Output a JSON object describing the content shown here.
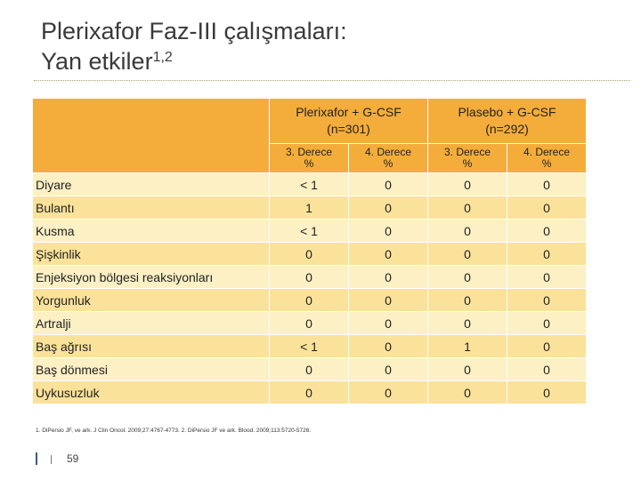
{
  "slide": {
    "title_line1": "Plerixafor Faz-III çalışmaları:",
    "title_line2": "Yan etkiler",
    "title_sup": "1,2",
    "groups": [
      {
        "line1": "Plerixafor + G-CSF",
        "line2": "(n=301)"
      },
      {
        "line1": "Plasebo + G-CSF",
        "line2": "(n=292)"
      }
    ],
    "subheaders": [
      {
        "label": "3. Derece",
        "unit": "%"
      },
      {
        "label": "4. Derece",
        "unit": "%"
      },
      {
        "label": "3. Derece",
        "unit": "%"
      },
      {
        "label": "4. Derece",
        "unit": "%"
      }
    ],
    "rows": [
      {
        "label": "Diyare",
        "values": [
          "< 1",
          "0",
          "0",
          "0"
        ]
      },
      {
        "label": "Bulantı",
        "values": [
          "1",
          "0",
          "0",
          "0"
        ]
      },
      {
        "label": "Kusma",
        "values": [
          "< 1",
          "0",
          "0",
          "0"
        ]
      },
      {
        "label": "Şişkinlik",
        "values": [
          "0",
          "0",
          "0",
          "0"
        ]
      },
      {
        "label": "Enjeksiyon bölgesi reaksiyonları",
        "values": [
          "0",
          "0",
          "0",
          "0"
        ]
      },
      {
        "label": "Yorgunluk",
        "values": [
          "0",
          "0",
          "0",
          "0"
        ]
      },
      {
        "label": "Artralji",
        "values": [
          "0",
          "0",
          "0",
          "0"
        ]
      },
      {
        "label": "Baş ağrısı",
        "values": [
          "< 1",
          "0",
          "1",
          "0"
        ]
      },
      {
        "label": "Baş dönmesi",
        "values": [
          "0",
          "0",
          "0",
          "0"
        ]
      },
      {
        "label": "Uykusuzluk",
        "values": [
          "0",
          "0",
          "0",
          "0"
        ]
      }
    ],
    "references": "1. DiPersio JF, ve ark. J Clin Oncol. 2009;27:4767-4773. 2. DiPersio JF ve ark. Blood. 2009;113:5720-5726.",
    "page_number": "59",
    "colors": {
      "header": "#f4ad3b",
      "row_light": "#fdf0c4",
      "row_mid": "#fbe29a"
    }
  }
}
